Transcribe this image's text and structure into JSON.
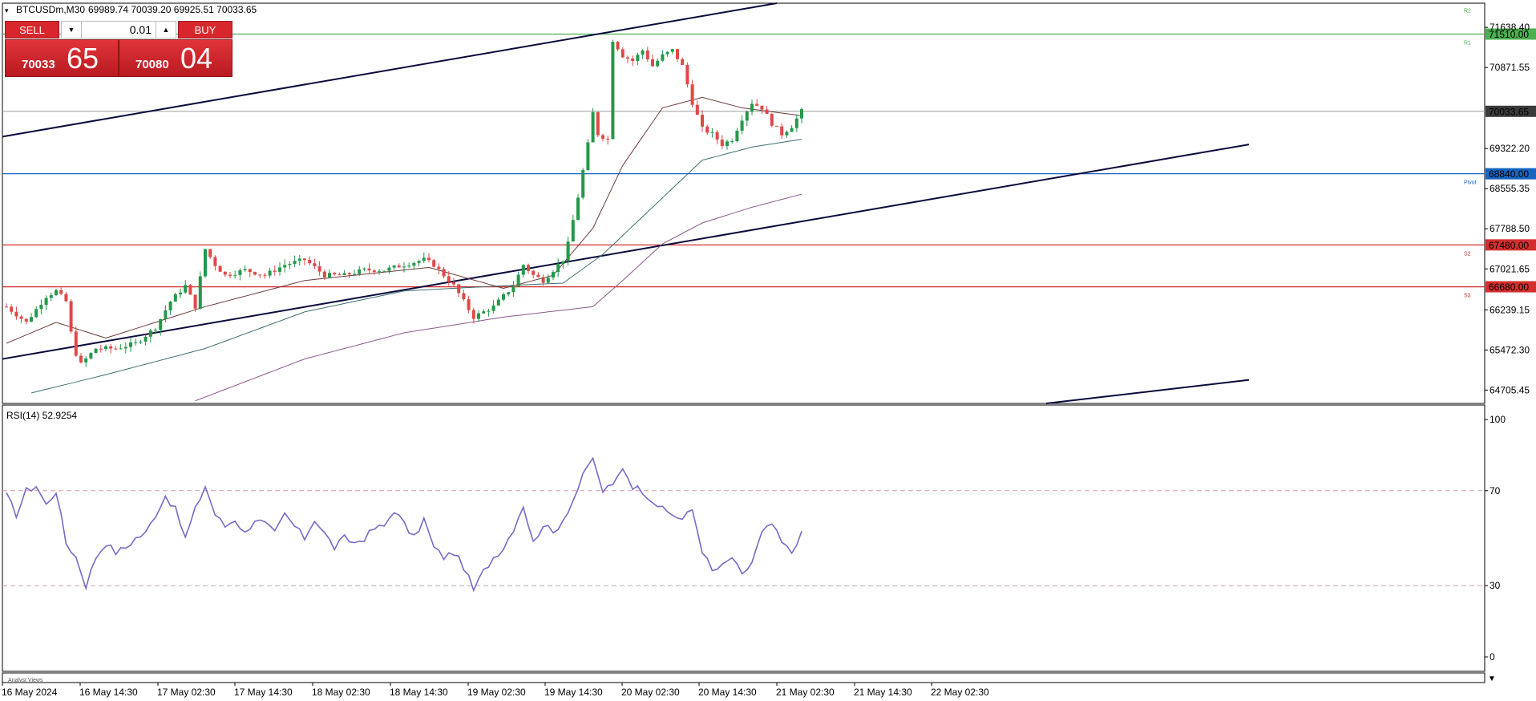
{
  "header": {
    "symbol": "BTCUSDm,M30",
    "ohlc": "69989.74 70039.20 69925.51 70033.65"
  },
  "trade_panel": {
    "sell_label": "SELL",
    "buy_label": "BUY",
    "lot": "0.01",
    "sell_price_main": "70033",
    "sell_price_big": "65",
    "buy_price_main": "70080",
    "buy_price_big": "04"
  },
  "bottom_panel": {
    "label": "Analyst Views"
  },
  "colors": {
    "bull": "#22994a",
    "bear": "#e04848",
    "r1": "#4caf50",
    "pivot": "#1565c0",
    "support": "#d32f2f",
    "rsi": "#7b68c8",
    "trendline": "#0a0a3c",
    "ma_fast": "#6d3b3b",
    "ma_mid": "#3f6f6f",
    "ma_slow": "#8a5a8a"
  },
  "chart_data": [
    {
      "type": "candlestick",
      "title": "BTCUSDm,M30",
      "y_ticks": [
        71638.4,
        70871.55,
        69322.2,
        68555.35,
        67788.5,
        67021.65,
        66239.15,
        65472.3,
        64705.45
      ],
      "y_range": [
        64450,
        72100
      ],
      "x_labels": [
        "16 May 2024",
        "16 May 14:30",
        "17 May 02:30",
        "17 May 14:30",
        "18 May 02:30",
        "18 May 14:30",
        "19 May 02:30",
        "19 May 14:30",
        "20 May 02:30",
        "20 May 14:30",
        "21 May 02:30",
        "21 May 14:30",
        "22 May 02:30"
      ],
      "current_price": "70033.65",
      "current_price_value": 70033.65,
      "levels": [
        {
          "label": "R2",
          "price_text": "",
          "value": 72050,
          "color_key": "r1",
          "line": false
        },
        {
          "label": "R1",
          "price_text": "71510.00",
          "value": 71510.0,
          "color_key": "r1",
          "line": true
        },
        {
          "label": "Pivot",
          "price_text": "68840.00",
          "value": 68840.0,
          "color_key": "pivot",
          "line": true
        },
        {
          "label": "S2",
          "price_text": "67480.00",
          "value": 67480.0,
          "color_key": "support",
          "line": true
        },
        {
          "label": "S3",
          "price_text": "66680.00",
          "value": 66680.0,
          "color_key": "support",
          "line": true
        }
      ],
      "price_anchors": [
        [
          0,
          66300
        ],
        [
          2,
          66150
        ],
        [
          4,
          66000
        ],
        [
          6,
          66250
        ],
        [
          8,
          66500
        ],
        [
          10,
          66600
        ],
        [
          12,
          66400
        ],
        [
          13,
          65800
        ],
        [
          14,
          65400
        ],
        [
          15,
          65200
        ],
        [
          16,
          65300
        ],
        [
          18,
          65500
        ],
        [
          22,
          65500
        ],
        [
          26,
          65600
        ],
        [
          30,
          65900
        ],
        [
          33,
          66400
        ],
        [
          36,
          66700
        ],
        [
          38,
          66300
        ],
        [
          40,
          67400
        ],
        [
          42,
          67100
        ],
        [
          44,
          66900
        ],
        [
          48,
          67000
        ],
        [
          52,
          66900
        ],
        [
          56,
          67100
        ],
        [
          60,
          67200
        ],
        [
          64,
          66900
        ],
        [
          68,
          66900
        ],
        [
          72,
          67000
        ],
        [
          76,
          67000
        ],
        [
          80,
          67100
        ],
        [
          84,
          67200
        ],
        [
          86,
          67100
        ],
        [
          88,
          66900
        ],
        [
          90,
          66700
        ],
        [
          92,
          66400
        ],
        [
          94,
          66100
        ],
        [
          96,
          66200
        ],
        [
          98,
          66300
        ],
        [
          100,
          66500
        ],
        [
          102,
          66700
        ],
        [
          104,
          67100
        ],
        [
          106,
          66900
        ],
        [
          108,
          66800
        ],
        [
          110,
          67000
        ],
        [
          112,
          67200
        ],
        [
          113,
          67500
        ],
        [
          115,
          68400
        ],
        [
          117,
          69400
        ],
        [
          118,
          70000
        ],
        [
          119,
          69600
        ],
        [
          121,
          69500
        ],
        [
          122,
          71400
        ],
        [
          124,
          71100
        ],
        [
          126,
          71000
        ],
        [
          128,
          71200
        ],
        [
          130,
          70900
        ],
        [
          132,
          71100
        ],
        [
          134,
          71200
        ],
        [
          136,
          70900
        ],
        [
          138,
          70200
        ],
        [
          140,
          69700
        ],
        [
          142,
          69600
        ],
        [
          144,
          69400
        ],
        [
          146,
          69500
        ],
        [
          148,
          69900
        ],
        [
          150,
          70200
        ],
        [
          152,
          70100
        ],
        [
          154,
          69800
        ],
        [
          156,
          69600
        ],
        [
          158,
          69750
        ],
        [
          160,
          70033.65
        ]
      ],
      "moving_averages": [
        {
          "color_key": "ma_fast",
          "points": [
            [
              0,
              65600
            ],
            [
              10,
              66000
            ],
            [
              20,
              65700
            ],
            [
              40,
              66300
            ],
            [
              60,
              66800
            ],
            [
              85,
              67050
            ],
            [
              100,
              66650
            ],
            [
              110,
              66900
            ],
            [
              118,
              67800
            ],
            [
              124,
              69000
            ],
            [
              132,
              70100
            ],
            [
              140,
              70300
            ],
            [
              148,
              70100
            ],
            [
              160,
              69950
            ]
          ]
        },
        {
          "color_key": "ma_mid",
          "points": [
            [
              5,
              64650
            ],
            [
              20,
              65000
            ],
            [
              40,
              65500
            ],
            [
              60,
              66200
            ],
            [
              80,
              66600
            ],
            [
              100,
              66700
            ],
            [
              112,
              66750
            ],
            [
              120,
              67300
            ],
            [
              130,
              68200
            ],
            [
              140,
              69100
            ],
            [
              150,
              69350
            ],
            [
              160,
              69500
            ]
          ]
        },
        {
          "color_key": "ma_slow",
          "points": [
            [
              38,
              64500
            ],
            [
              60,
              65300
            ],
            [
              80,
              65800
            ],
            [
              100,
              66100
            ],
            [
              118,
              66300
            ],
            [
              124,
              66800
            ],
            [
              132,
              67500
            ],
            [
              140,
              67900
            ],
            [
              150,
              68200
            ],
            [
              160,
              68450
            ]
          ]
        }
      ],
      "trendlines": [
        {
          "x_range": [
            0,
            155
          ],
          "y_range": [
            69550,
            72100
          ]
        },
        {
          "x_range": [
            0,
            250
          ],
          "y_range": [
            65300,
            69400
          ]
        },
        {
          "x_range": [
            210,
            250
          ],
          "y_range": [
            64450,
            64900
          ]
        }
      ]
    },
    {
      "type": "line",
      "title": "RSI(14) 52.9254",
      "y_ticks": [
        100,
        70,
        30,
        0
      ],
      "y_range": [
        0,
        100
      ],
      "levels": [
        70,
        30
      ],
      "series": [
        {
          "anchors": [
            [
              0,
              68
            ],
            [
              2,
              60
            ],
            [
              4,
              70
            ],
            [
              6,
              72
            ],
            [
              8,
              64
            ],
            [
              10,
              70
            ],
            [
              12,
              48
            ],
            [
              14,
              42
            ],
            [
              16,
              30
            ],
            [
              18,
              42
            ],
            [
              20,
              48
            ],
            [
              22,
              44
            ],
            [
              24,
              46
            ],
            [
              26,
              50
            ],
            [
              28,
              52
            ],
            [
              30,
              60
            ],
            [
              32,
              68
            ],
            [
              34,
              62
            ],
            [
              36,
              50
            ],
            [
              38,
              62
            ],
            [
              40,
              72
            ],
            [
              42,
              60
            ],
            [
              44,
              55
            ],
            [
              46,
              58
            ],
            [
              48,
              52
            ],
            [
              50,
              58
            ],
            [
              52,
              56
            ],
            [
              54,
              52
            ],
            [
              56,
              60
            ],
            [
              58,
              55
            ],
            [
              60,
              50
            ],
            [
              62,
              58
            ],
            [
              64,
              52
            ],
            [
              66,
              46
            ],
            [
              68,
              50
            ],
            [
              70,
              48
            ],
            [
              72,
              50
            ],
            [
              74,
              54
            ],
            [
              76,
              55
            ],
            [
              78,
              62
            ],
            [
              80,
              56
            ],
            [
              82,
              50
            ],
            [
              84,
              58
            ],
            [
              86,
              46
            ],
            [
              88,
              42
            ],
            [
              90,
              44
            ],
            [
              92,
              38
            ],
            [
              94,
              28
            ],
            [
              96,
              36
            ],
            [
              98,
              42
            ],
            [
              100,
              46
            ],
            [
              102,
              54
            ],
            [
              104,
              64
            ],
            [
              106,
              48
            ],
            [
              108,
              56
            ],
            [
              110,
              52
            ],
            [
              112,
              58
            ],
            [
              114,
              66
            ],
            [
              116,
              76
            ],
            [
              117,
              80
            ],
            [
              118,
              84
            ],
            [
              119,
              76
            ],
            [
              120,
              70
            ],
            [
              122,
              72
            ],
            [
              124,
              80
            ],
            [
              126,
              72
            ],
            [
              128,
              70
            ],
            [
              130,
              66
            ],
            [
              132,
              62
            ],
            [
              134,
              60
            ],
            [
              136,
              58
            ],
            [
              138,
              62
            ],
            [
              140,
              45
            ],
            [
              142,
              36
            ],
            [
              144,
              38
            ],
            [
              146,
              42
            ],
            [
              148,
              34
            ],
            [
              150,
              40
            ],
            [
              152,
              52
            ],
            [
              154,
              56
            ],
            [
              156,
              48
            ],
            [
              158,
              44
            ],
            [
              160,
              52.9254
            ]
          ]
        }
      ]
    }
  ]
}
